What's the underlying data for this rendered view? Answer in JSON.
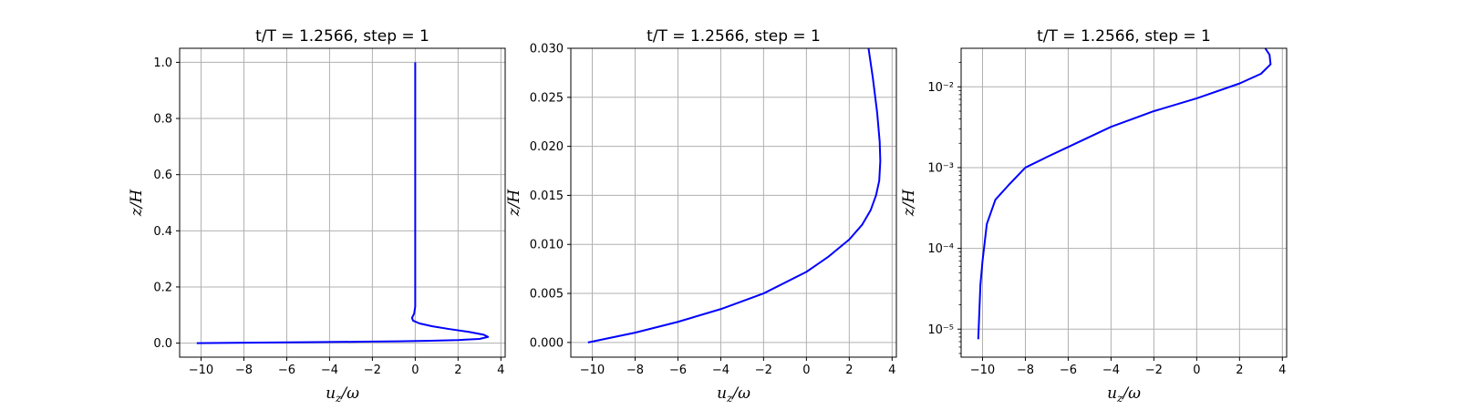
{
  "chart_data": [
    {
      "type": "line",
      "title": "t/T = 1.2566, step = 1",
      "xlabel": "u_z/ω",
      "ylabel": "z/H",
      "xlim": [
        -11,
        4.2
      ],
      "ylim": [
        -0.05,
        1.05
      ],
      "yscale": "linear",
      "grid": true,
      "xticks": [
        -10,
        -8,
        -6,
        -4,
        -2,
        0,
        2,
        4
      ],
      "xtick_labels": [
        "−10",
        "−8",
        "−6",
        "−4",
        "−2",
        "0",
        "2",
        "4"
      ],
      "yticks": [
        0.0,
        0.2,
        0.4,
        0.6,
        0.8,
        1.0
      ],
      "ytick_labels": [
        "0.0",
        "0.2",
        "0.4",
        "0.6",
        "0.8",
        "1.0"
      ],
      "series": [
        {
          "color": "#0000ff",
          "x": [
            -10.2,
            -7.2,
            -4.7,
            -2.5,
            -0.8,
            0.7,
            2.0,
            3.0,
            3.4,
            3.2,
            2.5,
            1.6,
            0.8,
            0.2,
            -0.1,
            -0.15,
            -0.05,
            0.0,
            0.0,
            0.0
          ],
          "y": [
            0.0,
            0.002,
            0.0035,
            0.005,
            0.0065,
            0.0085,
            0.011,
            0.015,
            0.022,
            0.03,
            0.04,
            0.05,
            0.06,
            0.07,
            0.08,
            0.09,
            0.105,
            0.13,
            0.5,
            1.0
          ]
        }
      ]
    },
    {
      "type": "line",
      "title": "t/T = 1.2566, step = 1",
      "xlabel": "u_z/ω",
      "ylabel": "z/H",
      "xlim": [
        -11,
        4.2
      ],
      "ylim": [
        -0.0015,
        0.03
      ],
      "yscale": "linear",
      "grid": true,
      "xticks": [
        -10,
        -8,
        -6,
        -4,
        -2,
        0,
        2,
        4
      ],
      "xtick_labels": [
        "−10",
        "−8",
        "−6",
        "−4",
        "−2",
        "0",
        "2",
        "4"
      ],
      "yticks": [
        0.0,
        0.005,
        0.01,
        0.015,
        0.02,
        0.025,
        0.03
      ],
      "ytick_labels": [
        "0.000",
        "0.005",
        "0.010",
        "0.015",
        "0.020",
        "0.025",
        "0.030"
      ],
      "series": [
        {
          "color": "#0000ff",
          "x": [
            -10.2,
            -8.0,
            -6.0,
            -4.0,
            -2.0,
            0.0,
            1.0,
            2.0,
            2.6,
            3.0,
            3.25,
            3.4,
            3.45,
            3.42,
            3.3,
            3.1,
            2.9
          ],
          "y": [
            0.0,
            0.001,
            0.0021,
            0.0034,
            0.005,
            0.0072,
            0.0087,
            0.0105,
            0.012,
            0.0135,
            0.015,
            0.0165,
            0.0185,
            0.0205,
            0.0235,
            0.027,
            0.03
          ]
        }
      ]
    },
    {
      "type": "line",
      "title": "t/T = 1.2566, step = 1",
      "xlabel": "u_z/ω",
      "ylabel": "z/H",
      "xlim": [
        -11,
        4.2
      ],
      "ylim": [
        4.5e-06,
        0.03
      ],
      "yscale": "log",
      "grid": true,
      "xticks": [
        -10,
        -8,
        -6,
        -4,
        -2,
        0,
        2,
        4
      ],
      "xtick_labels": [
        "−10",
        "−8",
        "−6",
        "−4",
        "−2",
        "0",
        "2",
        "4"
      ],
      "yticks": [
        1e-05,
        0.0001,
        0.001,
        0.01
      ],
      "ytick_labels": [
        "10⁻⁵",
        "10⁻⁴",
        "10⁻³",
        "10⁻²"
      ],
      "series": [
        {
          "color": "#0000ff",
          "x": [
            -10.2,
            -10.1,
            -10.0,
            -9.8,
            -9.4,
            -8.8,
            -8.0,
            -7.0,
            -6.0,
            -4.0,
            -2.0,
            0.0,
            2.0,
            3.0,
            3.45,
            3.4,
            3.2
          ],
          "y": [
            7.5e-06,
            3.5e-05,
            7e-05,
            0.0002,
            0.0004,
            0.0006,
            0.001,
            0.00135,
            0.0018,
            0.0032,
            0.005,
            0.0072,
            0.011,
            0.0145,
            0.019,
            0.025,
            0.03
          ]
        }
      ]
    }
  ]
}
